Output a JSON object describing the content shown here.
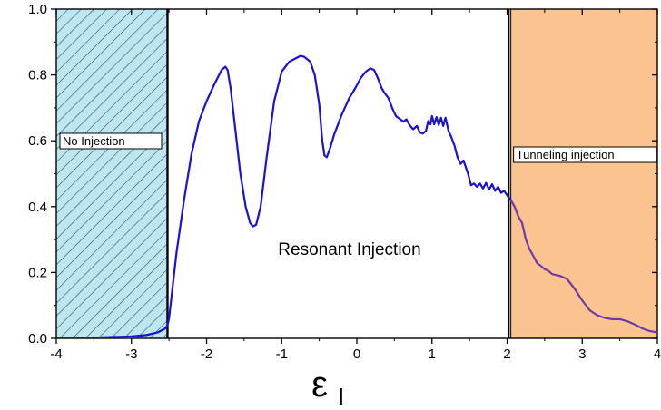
{
  "chart_data": {
    "type": "line",
    "title": "",
    "xlabel": "ε",
    "xlabel_subscript": "I",
    "ylabel": "",
    "xlim": [
      -4,
      4
    ],
    "ylim": [
      0,
      1.0
    ],
    "x_ticks": [
      "-4",
      "-3",
      "-2",
      "-1",
      "0",
      "1",
      "2",
      "3",
      "4"
    ],
    "y_ticks": [
      "0.0",
      "0.2",
      "0.4",
      "0.6",
      "0.8",
      "1.0"
    ],
    "grid": false,
    "legend": "none",
    "series": [
      {
        "color": "#1a12d6",
        "late_color": "#6b3aa8",
        "points": [
          [
            -4.0,
            0.0
          ],
          [
            -3.5,
            0.002
          ],
          [
            -3.0,
            0.006
          ],
          [
            -2.8,
            0.01
          ],
          [
            -2.65,
            0.018
          ],
          [
            -2.55,
            0.03
          ],
          [
            -2.52,
            0.04
          ],
          [
            -2.5,
            0.06
          ],
          [
            -2.45,
            0.16
          ],
          [
            -2.4,
            0.26
          ],
          [
            -2.3,
            0.42
          ],
          [
            -2.2,
            0.56
          ],
          [
            -2.1,
            0.66
          ],
          [
            -2.0,
            0.72
          ],
          [
            -1.9,
            0.77
          ],
          [
            -1.8,
            0.815
          ],
          [
            -1.75,
            0.825
          ],
          [
            -1.72,
            0.815
          ],
          [
            -1.68,
            0.76
          ],
          [
            -1.62,
            0.64
          ],
          [
            -1.55,
            0.5
          ],
          [
            -1.48,
            0.4
          ],
          [
            -1.42,
            0.35
          ],
          [
            -1.38,
            0.34
          ],
          [
            -1.34,
            0.345
          ],
          [
            -1.28,
            0.4
          ],
          [
            -1.2,
            0.55
          ],
          [
            -1.1,
            0.72
          ],
          [
            -1.0,
            0.81
          ],
          [
            -0.9,
            0.84
          ],
          [
            -0.8,
            0.852
          ],
          [
            -0.75,
            0.858
          ],
          [
            -0.7,
            0.855
          ],
          [
            -0.62,
            0.84
          ],
          [
            -0.56,
            0.8
          ],
          [
            -0.5,
            0.71
          ],
          [
            -0.46,
            0.6
          ],
          [
            -0.43,
            0.555
          ],
          [
            -0.4,
            0.55
          ],
          [
            -0.36,
            0.575
          ],
          [
            -0.3,
            0.62
          ],
          [
            -0.2,
            0.68
          ],
          [
            -0.1,
            0.73
          ],
          [
            -0.02,
            0.76
          ],
          [
            0.05,
            0.79
          ],
          [
            0.12,
            0.81
          ],
          [
            0.18,
            0.82
          ],
          [
            0.23,
            0.815
          ],
          [
            0.28,
            0.79
          ],
          [
            0.33,
            0.76
          ],
          [
            0.37,
            0.745
          ],
          [
            0.42,
            0.73
          ],
          [
            0.47,
            0.7
          ],
          [
            0.52,
            0.675
          ],
          [
            0.58,
            0.665
          ],
          [
            0.62,
            0.658
          ],
          [
            0.66,
            0.665
          ],
          [
            0.7,
            0.648
          ],
          [
            0.75,
            0.635
          ],
          [
            0.8,
            0.645
          ],
          [
            0.84,
            0.625
          ],
          [
            0.88,
            0.622
          ],
          [
            0.92,
            0.63
          ],
          [
            0.95,
            0.66
          ],
          [
            0.98,
            0.65
          ],
          [
            1.0,
            0.675
          ],
          [
            1.03,
            0.65
          ],
          [
            1.06,
            0.672
          ],
          [
            1.09,
            0.648
          ],
          [
            1.12,
            0.67
          ],
          [
            1.15,
            0.645
          ],
          [
            1.18,
            0.67
          ],
          [
            1.22,
            0.63
          ],
          [
            1.26,
            0.61
          ],
          [
            1.3,
            0.585
          ],
          [
            1.34,
            0.55
          ],
          [
            1.38,
            0.53
          ],
          [
            1.42,
            0.54
          ],
          [
            1.45,
            0.52
          ],
          [
            1.48,
            0.5
          ],
          [
            1.52,
            0.465
          ],
          [
            1.56,
            0.47
          ],
          [
            1.6,
            0.46
          ],
          [
            1.64,
            0.47
          ],
          [
            1.68,
            0.455
          ],
          [
            1.72,
            0.472
          ],
          [
            1.76,
            0.452
          ],
          [
            1.8,
            0.468
          ],
          [
            1.84,
            0.448
          ],
          [
            1.88,
            0.46
          ],
          [
            1.92,
            0.442
          ],
          [
            1.96,
            0.448
          ],
          [
            2.0,
            0.435
          ],
          [
            2.05,
            0.42
          ],
          [
            2.1,
            0.4
          ],
          [
            2.15,
            0.37
          ],
          [
            2.2,
            0.35
          ],
          [
            2.25,
            0.3
          ],
          [
            2.3,
            0.27
          ],
          [
            2.35,
            0.25
          ],
          [
            2.4,
            0.228
          ],
          [
            2.45,
            0.22
          ],
          [
            2.5,
            0.21
          ],
          [
            2.55,
            0.205
          ],
          [
            2.6,
            0.195
          ],
          [
            2.7,
            0.19
          ],
          [
            2.8,
            0.18
          ],
          [
            2.9,
            0.15
          ],
          [
            3.0,
            0.115
          ],
          [
            3.1,
            0.085
          ],
          [
            3.2,
            0.07
          ],
          [
            3.3,
            0.062
          ],
          [
            3.4,
            0.058
          ],
          [
            3.5,
            0.058
          ],
          [
            3.6,
            0.052
          ],
          [
            3.7,
            0.042
          ],
          [
            3.8,
            0.03
          ],
          [
            3.9,
            0.022
          ],
          [
            4.0,
            0.018
          ]
        ]
      }
    ],
    "regions": [
      {
        "x_start": -4,
        "x_end": -2.52,
        "fill": "#bde6f3",
        "hatch": true,
        "label": "No Injection"
      },
      {
        "x_start": 2.05,
        "x_end": 4,
        "fill": "#fbc38f",
        "hatch": false,
        "label": "Tunneling injection"
      }
    ],
    "vertical_lines": [
      -2.52,
      2.02
    ],
    "annotations": [
      {
        "text": "Resonant Injection",
        "x": 0.0,
        "y": 0.27
      }
    ]
  }
}
